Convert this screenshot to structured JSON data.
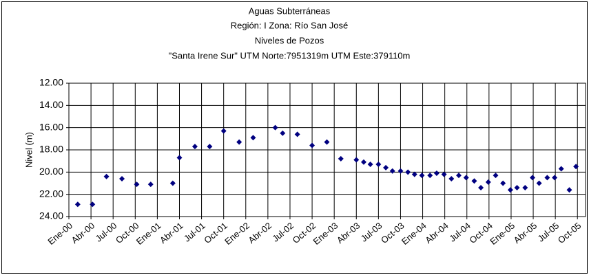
{
  "chart_data": {
    "type": "scatter",
    "title": [
      "Aguas Subterráneas",
      "Región: I  Zona: Río San José",
      "Niveles de Pozos",
      "\"Santa Irene Sur\"  UTM Norte:7951319m    UTM Este:379110m"
    ],
    "y_label": "Nivel (m)",
    "color": "#000080",
    "y_inverted": true,
    "grid": true,
    "xlim": [
      0,
      70.1
    ],
    "xticks": [
      {
        "value": 0,
        "label": "Ene-00"
      },
      {
        "value": 3,
        "label": "Abr-00"
      },
      {
        "value": 6,
        "label": "Jul-00"
      },
      {
        "value": 9,
        "label": "Oct-00"
      },
      {
        "value": 12,
        "label": "Ene-01"
      },
      {
        "value": 15,
        "label": "Abr-01"
      },
      {
        "value": 18,
        "label": "Jul-01"
      },
      {
        "value": 21,
        "label": "Oct-01"
      },
      {
        "value": 24,
        "label": "Ene-02"
      },
      {
        "value": 27,
        "label": "Abr-02"
      },
      {
        "value": 30,
        "label": "Jul-02"
      },
      {
        "value": 33,
        "label": "Oct-02"
      },
      {
        "value": 36,
        "label": "Ene-03"
      },
      {
        "value": 39,
        "label": "Abr-03"
      },
      {
        "value": 42,
        "label": "Jul-03"
      },
      {
        "value": 45,
        "label": "Oct-03"
      },
      {
        "value": 48,
        "label": "Ene-04"
      },
      {
        "value": 51,
        "label": "Abr-04"
      },
      {
        "value": 54,
        "label": "Jul-04"
      },
      {
        "value": 57,
        "label": "Oct-04"
      },
      {
        "value": 60,
        "label": "Ene-05"
      },
      {
        "value": 63,
        "label": "Abr-05"
      },
      {
        "value": 66,
        "label": "Jul-05"
      },
      {
        "value": 69,
        "label": "Oct-05"
      }
    ],
    "ylim": [
      12,
      24
    ],
    "yticks": [
      {
        "value": 12,
        "label": "12.00"
      },
      {
        "value": 14,
        "label": "14.00"
      },
      {
        "value": 16,
        "label": "16.00"
      },
      {
        "value": 18,
        "label": "18.00"
      },
      {
        "value": 20,
        "label": "20.00"
      },
      {
        "value": 22,
        "label": "22.00"
      },
      {
        "value": 24,
        "label": "24.00"
      }
    ],
    "x": [
      1.2,
      3.2,
      5.1,
      7.2,
      9.2,
      11.1,
      14.1,
      15.0,
      17.1,
      19.1,
      21.0,
      23.1,
      25.0,
      28.0,
      29.0,
      31.0,
      33.0,
      35.0,
      36.9,
      39.0,
      40.0,
      40.9,
      42.0,
      43.0,
      43.9,
      45.0,
      46.0,
      46.9,
      47.9,
      49.0,
      49.9,
      50.9,
      51.9,
      52.9,
      53.9,
      55.0,
      55.9,
      56.9,
      57.9,
      58.9,
      59.9,
      60.8,
      61.9,
      62.9,
      63.8,
      64.9,
      65.9,
      66.8,
      67.9,
      68.8
    ],
    "values": [
      22.9,
      22.9,
      20.4,
      20.6,
      21.1,
      21.1,
      21.0,
      18.7,
      17.7,
      17.7,
      16.3,
      17.3,
      16.9,
      16.0,
      16.5,
      16.6,
      17.6,
      17.3,
      18.8,
      18.9,
      19.1,
      19.3,
      19.3,
      19.6,
      19.9,
      19.9,
      20.0,
      20.2,
      20.3,
      20.3,
      20.1,
      20.2,
      20.6,
      20.3,
      20.5,
      20.8,
      21.4,
      20.9,
      20.3,
      21.0,
      21.6,
      21.4,
      21.4,
      20.5,
      21.0,
      20.5,
      20.5,
      19.7,
      21.6,
      19.5
    ]
  }
}
